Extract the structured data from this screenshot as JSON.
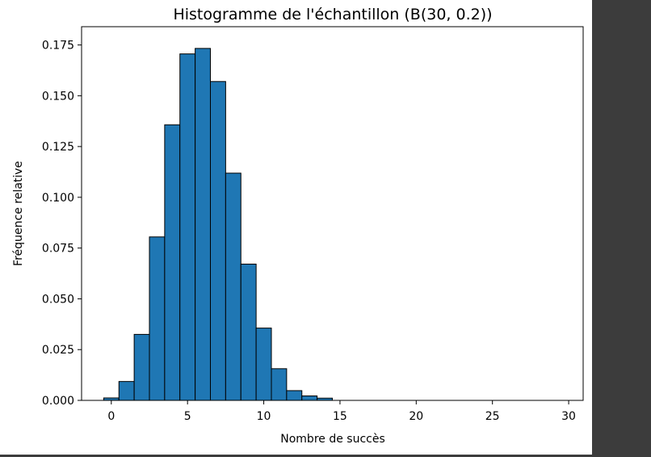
{
  "chart_data": {
    "type": "bar",
    "title": "Histogramme de l'échantillon (B(30, 0.2))",
    "xlabel": "Nombre de succès",
    "ylabel": "Fréquence relative",
    "xlim": [
      -1.95,
      30.95
    ],
    "ylim": [
      0,
      0.184
    ],
    "xticks": [
      0,
      5,
      10,
      15,
      20,
      25,
      30
    ],
    "xtick_labels": [
      "0",
      "5",
      "10",
      "15",
      "20",
      "25",
      "30"
    ],
    "yticks": [
      0,
      0.025,
      0.05,
      0.075,
      0.1,
      0.125,
      0.15,
      0.175
    ],
    "ytick_labels": [
      "0.000",
      "0.025",
      "0.050",
      "0.075",
      "0.100",
      "0.125",
      "0.150",
      "0.175"
    ],
    "grid": false,
    "bin_width": 1,
    "categories": [
      0,
      1,
      2,
      3,
      4,
      5,
      6,
      7,
      8,
      9,
      10,
      11,
      12,
      13,
      14,
      15,
      16,
      17,
      18,
      19,
      20,
      21,
      22,
      23,
      24,
      25,
      26,
      27,
      28,
      29,
      30
    ],
    "values": [
      0.0012,
      0.0093,
      0.0325,
      0.0805,
      0.1357,
      0.1706,
      0.1733,
      0.157,
      0.1119,
      0.0671,
      0.0356,
      0.0156,
      0.0048,
      0.0022,
      0.0011,
      0,
      0,
      0,
      0,
      0,
      0,
      0,
      0,
      0,
      0,
      0,
      0,
      0,
      0,
      0,
      0
    ],
    "bar_color": "#1f77b4",
    "edge_color": "#000000"
  },
  "colors": {
    "figure_background": "#ffffff",
    "dark_background": "#3c3c3c"
  }
}
